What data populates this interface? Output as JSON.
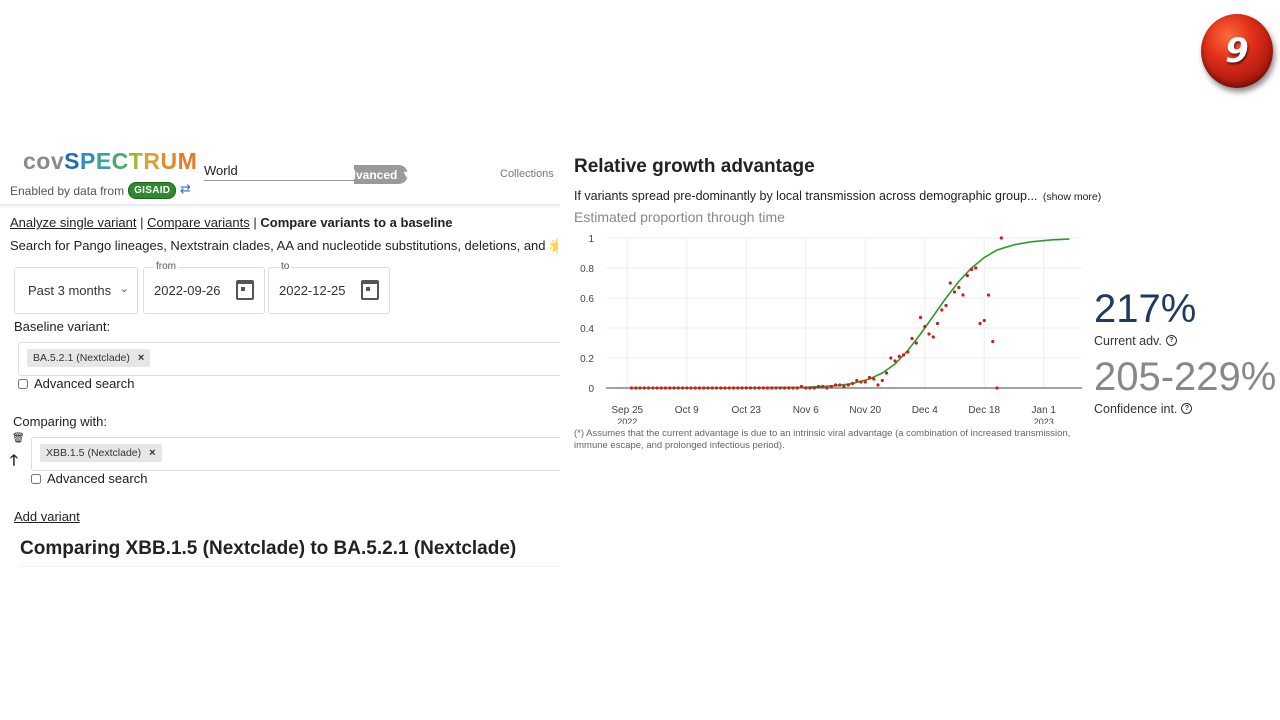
{
  "badge": {
    "number": "9"
  },
  "header": {
    "logo_prefix": "cov",
    "logo_main": [
      "S",
      "P",
      "E",
      "C",
      "T",
      "R",
      "U",
      "M"
    ],
    "enabled_text": "Enabled by data from",
    "gisaid_label": "GISAID",
    "location_value": "World",
    "advanced_label": "Advanced",
    "collections_label": "Collections"
  },
  "nav": {
    "link_single": "Analyze single variant",
    "link_compare": "Compare variants",
    "current": "Compare variants to a baseline",
    "sep": "|"
  },
  "search_desc": "Search for Pango lineages, Nextstrain clades, AA and nucleotide substitutions, deletions, and 🌟",
  "filters": {
    "period_value": "Past 3 months",
    "from_label": "from",
    "from_value": "2022-09-26",
    "to_label": "to",
    "to_value": "2022-12-25"
  },
  "baseline": {
    "label": "Baseline variant:",
    "chip": "BA.5.2.1 (Nextclade)",
    "advanced_search": "Advanced search"
  },
  "comparing": {
    "label": "Comparing with:",
    "chip": "XBB.1.5 (Nextclade)",
    "advanced_search": "Advanced search"
  },
  "chip_remove": "×",
  "add_variant": "Add variant",
  "compare_heading": "Comparing XBB.1.5 (Nextclade) to BA.5.2.1 (Nextclade)",
  "rga": {
    "title": "Relative growth advantage",
    "desc": "If variants spread pre-dominantly by local transmission across demographic group...",
    "show_more": "(show more)",
    "chart_title": "Estimated proportion through time",
    "footnote": "(*) Assumes that the current advantage is due to an intrinsic viral advantage (a combination of increased transmission, immune escape, and prolonged infectious period).",
    "current_adv_value": "217%",
    "current_adv_label": "Current adv.",
    "ci_value": "205-229%",
    "ci_label": "Confidence int.",
    "help_glyph": "?"
  },
  "colors": {
    "fit_line": "#2e9a2e",
    "points": "#d01c1c",
    "adv_value": "#1e3a5f",
    "ci_value": "#888888"
  },
  "chart_data": {
    "type": "scatter",
    "title": "Estimated proportion through time",
    "xlabel": "",
    "ylabel": "",
    "x_range": [
      "2022-09-20",
      "2023-01-10"
    ],
    "ylim": [
      0,
      1
    ],
    "y_ticks": [
      0,
      0.2,
      0.4,
      0.6,
      0.8,
      1
    ],
    "x_ticks": [
      {
        "date": "2022-09-25",
        "label": "Sep 25",
        "sub": "2022"
      },
      {
        "date": "2022-10-09",
        "label": "Oct 9",
        "sub": ""
      },
      {
        "date": "2022-10-23",
        "label": "Oct 23",
        "sub": ""
      },
      {
        "date": "2022-11-06",
        "label": "Nov 6",
        "sub": ""
      },
      {
        "date": "2022-11-20",
        "label": "Nov 20",
        "sub": ""
      },
      {
        "date": "2022-12-04",
        "label": "Dec 4",
        "sub": ""
      },
      {
        "date": "2022-12-18",
        "label": "Dec 18",
        "sub": ""
      },
      {
        "date": "2023-01-01",
        "label": "Jan 1",
        "sub": "2023"
      }
    ],
    "grid": true,
    "series": [
      {
        "type": "points",
        "points": [
          [
            "2022-09-26",
            0
          ],
          [
            "2022-09-27",
            0
          ],
          [
            "2022-09-28",
            0
          ],
          [
            "2022-09-29",
            0
          ],
          [
            "2022-09-30",
            0
          ],
          [
            "2022-10-01",
            0
          ],
          [
            "2022-10-02",
            0
          ],
          [
            "2022-10-03",
            0
          ],
          [
            "2022-10-04",
            0
          ],
          [
            "2022-10-05",
            0
          ],
          [
            "2022-10-06",
            0
          ],
          [
            "2022-10-07",
            0
          ],
          [
            "2022-10-08",
            0
          ],
          [
            "2022-10-09",
            0
          ],
          [
            "2022-10-10",
            0
          ],
          [
            "2022-10-11",
            0
          ],
          [
            "2022-10-12",
            0
          ],
          [
            "2022-10-13",
            0
          ],
          [
            "2022-10-14",
            0
          ],
          [
            "2022-10-15",
            0
          ],
          [
            "2022-10-16",
            0
          ],
          [
            "2022-10-17",
            0
          ],
          [
            "2022-10-18",
            0
          ],
          [
            "2022-10-19",
            0
          ],
          [
            "2022-10-20",
            0
          ],
          [
            "2022-10-21",
            0
          ],
          [
            "2022-10-22",
            0
          ],
          [
            "2022-10-23",
            0
          ],
          [
            "2022-10-24",
            0
          ],
          [
            "2022-10-25",
            0
          ],
          [
            "2022-10-26",
            0
          ],
          [
            "2022-10-27",
            0
          ],
          [
            "2022-10-28",
            0
          ],
          [
            "2022-10-29",
            0
          ],
          [
            "2022-10-30",
            0
          ],
          [
            "2022-10-31",
            0
          ],
          [
            "2022-11-01",
            0
          ],
          [
            "2022-11-02",
            0
          ],
          [
            "2022-11-03",
            0
          ],
          [
            "2022-11-04",
            0
          ],
          [
            "2022-11-05",
            0.01
          ],
          [
            "2022-11-06",
            0
          ],
          [
            "2022-11-07",
            0
          ],
          [
            "2022-11-08",
            0
          ],
          [
            "2022-11-09",
            0.01
          ],
          [
            "2022-11-10",
            0.01
          ],
          [
            "2022-11-11",
            0
          ],
          [
            "2022-11-12",
            0.01
          ],
          [
            "2022-11-13",
            0.02
          ],
          [
            "2022-11-14",
            0.02
          ],
          [
            "2022-11-15",
            0.01
          ],
          [
            "2022-11-16",
            0.02
          ],
          [
            "2022-11-17",
            0.03
          ],
          [
            "2022-11-18",
            0.05
          ],
          [
            "2022-11-19",
            0.04
          ],
          [
            "2022-11-20",
            0.04
          ],
          [
            "2022-11-21",
            0.07
          ],
          [
            "2022-11-22",
            0.06
          ],
          [
            "2022-11-23",
            0.02
          ],
          [
            "2022-11-24",
            0.05
          ],
          [
            "2022-11-25",
            0.1
          ],
          [
            "2022-11-26",
            0.2
          ],
          [
            "2022-11-27",
            0.18
          ],
          [
            "2022-11-28",
            0.21
          ],
          [
            "2022-11-29",
            0.22
          ],
          [
            "2022-11-30",
            0.24
          ],
          [
            "2022-12-01",
            0.33
          ],
          [
            "2022-12-02",
            0.3
          ],
          [
            "2022-12-03",
            0.47
          ],
          [
            "2022-12-04",
            0.41
          ],
          [
            "2022-12-05",
            0.36
          ],
          [
            "2022-12-06",
            0.34
          ],
          [
            "2022-12-07",
            0.43
          ],
          [
            "2022-12-08",
            0.52
          ],
          [
            "2022-12-09",
            0.55
          ],
          [
            "2022-12-10",
            0.7
          ],
          [
            "2022-12-11",
            0.64
          ],
          [
            "2022-12-12",
            0.67
          ],
          [
            "2022-12-13",
            0.62
          ],
          [
            "2022-12-14",
            0.75
          ],
          [
            "2022-12-15",
            0.79
          ],
          [
            "2022-12-16",
            0.8
          ],
          [
            "2022-12-17",
            0.43
          ],
          [
            "2022-12-18",
            0.45
          ],
          [
            "2022-12-19",
            0.62
          ],
          [
            "2022-12-20",
            0.31
          ],
          [
            "2022-12-21",
            0
          ],
          [
            "2022-12-22",
            1.0
          ]
        ]
      },
      {
        "type": "fit",
        "points": [
          [
            "2022-09-26",
            0
          ],
          [
            "2022-10-16",
            0
          ],
          [
            "2022-11-06",
            0.005
          ],
          [
            "2022-11-13",
            0.015
          ],
          [
            "2022-11-17",
            0.03
          ],
          [
            "2022-11-21",
            0.06
          ],
          [
            "2022-11-24",
            0.1
          ],
          [
            "2022-11-27",
            0.16
          ],
          [
            "2022-11-30",
            0.25
          ],
          [
            "2022-12-03",
            0.36
          ],
          [
            "2022-12-06",
            0.48
          ],
          [
            "2022-12-09",
            0.6
          ],
          [
            "2022-12-12",
            0.71
          ],
          [
            "2022-12-15",
            0.8
          ],
          [
            "2022-12-18",
            0.87
          ],
          [
            "2022-12-21",
            0.92
          ],
          [
            "2022-12-25",
            0.955
          ],
          [
            "2022-12-29",
            0.975
          ],
          [
            "2023-01-03",
            0.988
          ],
          [
            "2023-01-07",
            0.993
          ]
        ]
      }
    ]
  }
}
